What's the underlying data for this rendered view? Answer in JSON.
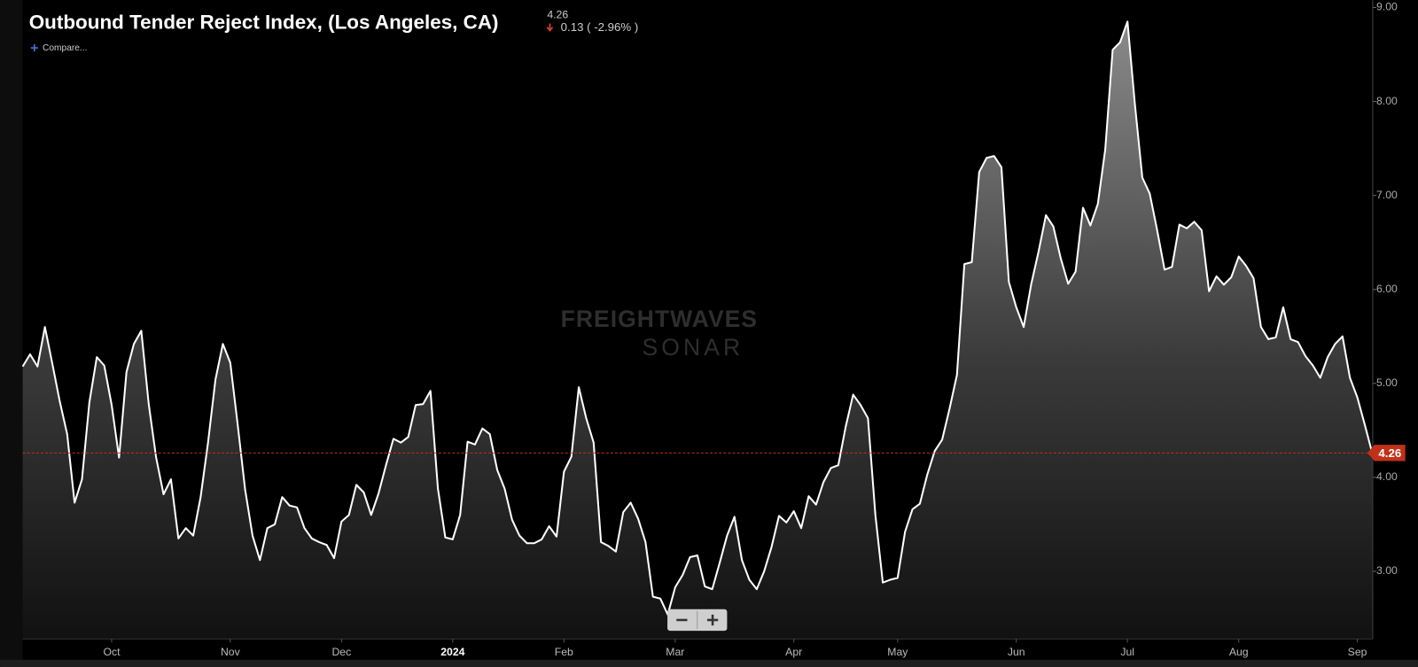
{
  "chart_data": {
    "type": "area",
    "title": "Outbound Tender Reject Index, (Los Angeles, CA)",
    "last_value": 4.26,
    "change": "0.13 ( -2.96% )",
    "compare": "Compare...",
    "watermark": {
      "line1": "FREIGHTWAVES",
      "line2": "SONAR"
    },
    "color": "#ffffff",
    "last_color": "#c0311a",
    "categories": [
      null,
      null,
      null,
      null,
      null,
      null,
      null,
      null,
      null,
      null,
      null,
      null,
      "Oct",
      null,
      null,
      null,
      null,
      null,
      null,
      null,
      null,
      null,
      null,
      null,
      null,
      null,
      null,
      null,
      "Nov",
      null,
      null,
      null,
      null,
      null,
      null,
      null,
      null,
      null,
      null,
      null,
      null,
      null,
      null,
      "Dec",
      null,
      null,
      null,
      null,
      null,
      null,
      null,
      null,
      null,
      null,
      null,
      null,
      null,
      null,
      "2024",
      null,
      null,
      null,
      null,
      null,
      null,
      null,
      null,
      null,
      null,
      null,
      null,
      null,
      null,
      "Feb",
      null,
      null,
      null,
      null,
      null,
      null,
      null,
      null,
      null,
      null,
      null,
      null,
      null,
      null,
      "Mar",
      null,
      null,
      null,
      null,
      null,
      null,
      null,
      null,
      null,
      null,
      null,
      null,
      null,
      null,
      null,
      "Apr",
      null,
      null,
      null,
      null,
      null,
      null,
      null,
      null,
      null,
      null,
      null,
      null,
      null,
      "May",
      null,
      null,
      null,
      null,
      null,
      null,
      null,
      null,
      null,
      null,
      null,
      null,
      null,
      null,
      null,
      "Jun",
      null,
      null,
      null,
      null,
      null,
      null,
      null,
      null,
      null,
      null,
      null,
      null,
      null,
      null,
      "Jul",
      null,
      null,
      null,
      null,
      null,
      null,
      null,
      null,
      null,
      null,
      null,
      null,
      null,
      null,
      "Aug",
      null,
      null,
      null,
      null,
      null,
      null,
      null,
      null,
      null,
      null,
      null,
      null,
      null,
      null,
      null,
      "Sep",
      null,
      null
    ],
    "values": [
      5.18,
      5.31,
      5.18,
      5.6,
      5.21,
      4.81,
      4.46,
      3.73,
      3.98,
      4.8,
      5.28,
      5.19,
      4.77,
      4.21,
      5.12,
      5.42,
      5.56,
      4.78,
      4.21,
      3.82,
      3.98,
      3.35,
      3.46,
      3.38,
      3.79,
      4.37,
      5.04,
      5.42,
      5.22,
      4.56,
      3.87,
      3.38,
      3.12,
      3.46,
      3.5,
      3.79,
      3.7,
      3.68,
      3.46,
      3.35,
      3.31,
      3.28,
      3.14,
      3.53,
      3.6,
      3.92,
      3.84,
      3.6,
      3.83,
      4.13,
      4.41,
      4.37,
      4.43,
      4.77,
      4.78,
      4.92,
      3.88,
      3.36,
      3.34,
      3.6,
      4.38,
      4.35,
      4.52,
      4.46,
      4.08,
      3.88,
      3.55,
      3.38,
      3.3,
      3.3,
      3.34,
      3.48,
      3.37,
      4.06,
      4.22,
      4.96,
      4.63,
      4.37,
      3.31,
      3.27,
      3.21,
      3.63,
      3.73,
      3.56,
      3.31,
      2.73,
      2.71,
      2.54,
      2.83,
      2.96,
      3.15,
      3.17,
      2.84,
      2.81,
      3.09,
      3.38,
      3.58,
      3.12,
      2.91,
      2.81,
      3.0,
      3.26,
      3.59,
      3.52,
      3.64,
      3.46,
      3.8,
      3.71,
      3.95,
      4.1,
      4.13,
      4.54,
      4.88,
      4.77,
      4.63,
      3.6,
      2.88,
      2.91,
      2.93,
      3.42,
      3.66,
      3.72,
      4.03,
      4.28,
      4.4,
      4.73,
      5.09,
      6.27,
      6.29,
      7.25,
      7.4,
      7.42,
      7.3,
      6.08,
      5.81,
      5.6,
      6.05,
      6.4,
      6.79,
      6.67,
      6.33,
      6.06,
      6.19,
      6.87,
      6.68,
      6.91,
      7.49,
      8.55,
      8.63,
      8.85,
      7.97,
      7.19,
      7.02,
      6.63,
      6.21,
      6.24,
      6.69,
      6.65,
      6.72,
      6.63,
      5.98,
      6.14,
      6.05,
      6.13,
      6.35,
      6.25,
      6.12,
      5.6,
      5.47,
      5.49,
      5.81,
      5.47,
      5.44,
      5.29,
      5.19,
      5.06,
      5.28,
      5.42,
      5.5,
      5.06,
      4.85,
      4.56,
      4.26
    ],
    "ylim": [
      2.28,
      9.08
    ],
    "yticks": [
      {
        "value": 3,
        "label": "3.00"
      },
      {
        "value": 4,
        "label": "4.00"
      },
      {
        "value": 5,
        "label": "5.00"
      },
      {
        "value": 6,
        "label": "6.00"
      },
      {
        "value": 7,
        "label": "7.00"
      },
      {
        "value": 8,
        "label": "8.00"
      },
      {
        "value": 9,
        "label": "9.00"
      }
    ],
    "grid": false
  }
}
